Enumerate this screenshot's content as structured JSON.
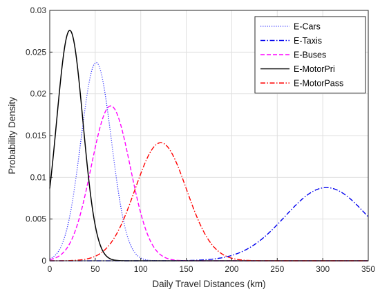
{
  "chart_data": {
    "type": "line",
    "xlabel": "Daily Travel Distances (km)",
    "ylabel": "Probability Density",
    "xlim": [
      0,
      350
    ],
    "ylim": [
      0,
      0.03
    ],
    "xticks": [
      "0",
      "50",
      "100",
      "150",
      "200",
      "250",
      "300",
      "350"
    ],
    "yticks": [
      "0",
      "0.005",
      "0.01",
      "0.015",
      "0.02",
      "0.025",
      "0.03"
    ],
    "grid": true,
    "legend_position": "top-right",
    "series": [
      {
        "name": "E-Cars",
        "color": "#3333ff",
        "style": "dotted",
        "mu": 51,
        "sigma": 16.8
      },
      {
        "name": "E-Taxis",
        "color": "#0000ee",
        "style": "dash-dot",
        "mu": 304,
        "sigma": 45.5
      },
      {
        "name": "E-Buses",
        "color": "#ff00ff",
        "style": "dashed",
        "mu": 67,
        "sigma": 21.5
      },
      {
        "name": "E-MotorPri",
        "color": "#000000",
        "style": "solid",
        "mu": 22,
        "sigma": 14.45
      },
      {
        "name": "E-MotorPass",
        "color": "#ff0000",
        "style": "dash-dot",
        "mu": 122,
        "sigma": 28.2
      }
    ]
  }
}
